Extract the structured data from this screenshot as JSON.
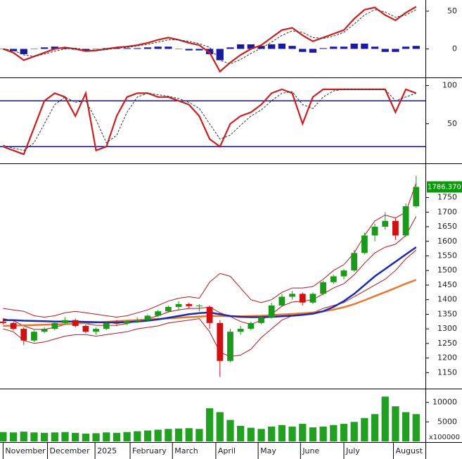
{
  "chart_data": {
    "type": "stock",
    "x": [
      0,
      1,
      2,
      3,
      4,
      5,
      6,
      7,
      8,
      9,
      10,
      11,
      12,
      13,
      14,
      15,
      16,
      17,
      18,
      19,
      20,
      21,
      22,
      23,
      24,
      25,
      26,
      27,
      28,
      29,
      30,
      31,
      32,
      33,
      34,
      35,
      36,
      37,
      38,
      39,
      40
    ],
    "xlim": [
      -0.3,
      40.9
    ],
    "xticks": [
      {
        "value": 0,
        "label": "November"
      },
      {
        "value": 4.3,
        "label": "December"
      },
      {
        "value": 8.9,
        "label": "2025"
      },
      {
        "value": 12.3,
        "label": "February"
      },
      {
        "value": 16.4,
        "label": "March"
      },
      {
        "value": 20.6,
        "label": "April"
      },
      {
        "value": 24.7,
        "label": "May"
      },
      {
        "value": 28.8,
        "label": "June"
      },
      {
        "value": 33.0,
        "label": "July"
      },
      {
        "value": 37.8,
        "label": "August"
      }
    ],
    "panels": [
      {
        "type": "line",
        "ylim": [
          -36,
          63
        ],
        "yticks": [
          0,
          50
        ],
        "histogram": {
          "color": "#1a1aa0",
          "values": [
            0,
            -3,
            -7,
            0,
            2,
            3,
            2,
            -1,
            -2,
            0,
            1,
            1,
            1,
            1,
            2,
            3,
            3,
            0,
            -2,
            -2,
            -7,
            -15,
            2,
            6,
            6,
            4,
            6,
            7,
            4,
            -4,
            -5,
            1,
            3,
            3,
            7,
            7,
            3,
            -4,
            -4,
            3,
            4
          ]
        },
        "series": [
          {
            "color": "#cc1f1f",
            "dash": false,
            "values": [
              0,
              -5,
              -15,
              -10,
              -5,
              0,
              2,
              0,
              -3,
              -2,
              0,
              2,
              3,
              5,
              8,
              12,
              15,
              12,
              8,
              5,
              -5,
              -30,
              -18,
              -8,
              0,
              5,
              15,
              25,
              28,
              18,
              10,
              15,
              20,
              25,
              40,
              52,
              55,
              45,
              38,
              48,
              56
            ]
          },
          {
            "color": "#333333",
            "dash": true,
            "values": [
              0,
              -2,
              -8,
              -10,
              -7,
              -3,
              0,
              1,
              -1,
              -2,
              -1,
              1,
              2,
              4,
              6,
              9,
              12,
              12,
              10,
              7,
              2,
              -15,
              -20,
              -14,
              -6,
              1,
              9,
              18,
              24,
              22,
              15,
              14,
              17,
              22,
              33,
              45,
              52,
              49,
              42,
              45,
              52
            ]
          }
        ]
      },
      {
        "type": "line",
        "ylim": [
          0,
          106
        ],
        "yticks": [
          50,
          100
        ],
        "levels": {
          "color": "#1010b0",
          "values": [
            80,
            20
          ]
        },
        "series": [
          {
            "color": "#cc1f1f",
            "dash": false,
            "values": [
              20,
              15,
              10,
              45,
              80,
              90,
              85,
              60,
              90,
              15,
              20,
              60,
              85,
              90,
              90,
              85,
              85,
              80,
              75,
              60,
              30,
              20,
              50,
              60,
              65,
              75,
              90,
              95,
              90,
              50,
              85,
              95,
              95,
              95,
              95,
              95,
              95,
              95,
              65,
              95,
              90
            ]
          },
          {
            "color": "#333333",
            "dash": true,
            "values": [
              22,
              18,
              15,
              25,
              50,
              75,
              85,
              78,
              80,
              55,
              25,
              35,
              65,
              85,
              90,
              88,
              86,
              83,
              78,
              70,
              50,
              30,
              35,
              48,
              60,
              68,
              80,
              90,
              92,
              75,
              70,
              85,
              93,
              95,
              95,
              95,
              95,
              95,
              80,
              85,
              90
            ]
          }
        ]
      },
      {
        "type": "candlestick",
        "ylim": [
          1100,
          1860
        ],
        "yticks": [
          1150,
          1200,
          1250,
          1300,
          1350,
          1400,
          1450,
          1500,
          1550,
          1600,
          1650,
          1700,
          1750
        ],
        "up_color": "#1a9a1a",
        "down_color": "#d01010",
        "last_price": {
          "value": 1786.37,
          "label": "1786.370",
          "color": "#0a9a0a"
        },
        "ohlc": [
          [
            1325,
            1335,
            1315,
            1320
          ],
          [
            1320,
            1325,
            1295,
            1300
          ],
          [
            1300,
            1305,
            1245,
            1260
          ],
          [
            1260,
            1295,
            1255,
            1290
          ],
          [
            1290,
            1305,
            1285,
            1300
          ],
          [
            1300,
            1325,
            1295,
            1320
          ],
          [
            1320,
            1340,
            1315,
            1330
          ],
          [
            1330,
            1335,
            1305,
            1310
          ],
          [
            1310,
            1315,
            1285,
            1290
          ],
          [
            1290,
            1305,
            1280,
            1300
          ],
          [
            1300,
            1325,
            1295,
            1320
          ],
          [
            1320,
            1330,
            1310,
            1318
          ],
          [
            1318,
            1330,
            1312,
            1325
          ],
          [
            1325,
            1340,
            1320,
            1330
          ],
          [
            1330,
            1350,
            1325,
            1345
          ],
          [
            1345,
            1365,
            1340,
            1360
          ],
          [
            1360,
            1380,
            1355,
            1375
          ],
          [
            1375,
            1395,
            1365,
            1385
          ],
          [
            1385,
            1390,
            1370,
            1378
          ],
          [
            1378,
            1385,
            1360,
            1380
          ],
          [
            1375,
            1380,
            1300,
            1320
          ],
          [
            1320,
            1330,
            1135,
            1190
          ],
          [
            1190,
            1300,
            1185,
            1290
          ],
          [
            1290,
            1310,
            1280,
            1300
          ],
          [
            1300,
            1325,
            1295,
            1320
          ],
          [
            1320,
            1345,
            1315,
            1340
          ],
          [
            1340,
            1390,
            1335,
            1380
          ],
          [
            1380,
            1420,
            1375,
            1410
          ],
          [
            1410,
            1430,
            1400,
            1420
          ],
          [
            1420,
            1425,
            1380,
            1390
          ],
          [
            1390,
            1425,
            1385,
            1420
          ],
          [
            1420,
            1465,
            1415,
            1460
          ],
          [
            1460,
            1485,
            1455,
            1480
          ],
          [
            1480,
            1505,
            1470,
            1500
          ],
          [
            1500,
            1570,
            1495,
            1560
          ],
          [
            1560,
            1630,
            1555,
            1620
          ],
          [
            1620,
            1660,
            1600,
            1650
          ],
          [
            1650,
            1700,
            1640,
            1670
          ],
          [
            1670,
            1680,
            1605,
            1620
          ],
          [
            1620,
            1730,
            1615,
            1720
          ],
          [
            1720,
            1825,
            1715,
            1786.37
          ]
        ],
        "series": [
          {
            "color": "#b01818",
            "width": 1,
            "values": [
              1370,
              1365,
              1360,
              1345,
              1340,
              1345,
              1355,
              1360,
              1355,
              1350,
              1345,
              1340,
              1345,
              1355,
              1365,
              1380,
              1395,
              1405,
              1410,
              1405,
              1460,
              1490,
              1480,
              1440,
              1400,
              1390,
              1400,
              1425,
              1440,
              1440,
              1445,
              1470,
              1500,
              1520,
              1560,
              1620,
              1670,
              1690,
              1680,
              1700,
              1800
            ]
          },
          {
            "color": "#b01818",
            "width": 1,
            "values": [
              1335,
              1328,
              1310,
              1298,
              1298,
              1305,
              1315,
              1320,
              1318,
              1312,
              1312,
              1312,
              1318,
              1328,
              1335,
              1345,
              1358,
              1365,
              1370,
              1370,
              1375,
              1355,
              1342,
              1325,
              1315,
              1330,
              1350,
              1378,
              1392,
              1395,
              1400,
              1420,
              1440,
              1455,
              1485,
              1525,
              1560,
              1580,
              1590,
              1620,
              1685
            ]
          },
          {
            "color": "#b01818",
            "width": 1,
            "values": [
              1300,
              1290,
              1260,
              1250,
              1255,
              1265,
              1275,
              1280,
              1280,
              1275,
              1280,
              1285,
              1290,
              1300,
              1305,
              1310,
              1320,
              1325,
              1330,
              1335,
              1290,
              1220,
              1205,
              1210,
              1230,
              1270,
              1300,
              1330,
              1345,
              1350,
              1355,
              1370,
              1380,
              1390,
              1410,
              1430,
              1450,
              1470,
              1500,
              1540,
              1570
            ]
          },
          {
            "color": "#e8772e",
            "width": 2.5,
            "values": [
              1310,
              1311,
              1312,
              1313,
              1314,
              1315,
              1316,
              1318,
              1320,
              1322,
              1324,
              1326,
              1328,
              1330,
              1332,
              1334,
              1336,
              1338,
              1340,
              1342,
              1344,
              1344,
              1343,
              1343,
              1344,
              1345,
              1347,
              1349,
              1351,
              1353,
              1356,
              1360,
              1366,
              1374,
              1385,
              1398,
              1412,
              1426,
              1440,
              1455,
              1468
            ]
          },
          {
            "color": "#1a2ab0",
            "width": 2.5,
            "values": [
              1330,
              1330,
              1328,
              1327,
              1326,
              1325,
              1325,
              1325,
              1324,
              1323,
              1322,
              1322,
              1323,
              1325,
              1328,
              1332,
              1338,
              1344,
              1350,
              1354,
              1356,
              1350,
              1344,
              1341,
              1340,
              1340,
              1341,
              1343,
              1345,
              1348,
              1352,
              1360,
              1375,
              1395,
              1420,
              1450,
              1480,
              1505,
              1530,
              1555,
              1580
            ]
          }
        ]
      },
      {
        "type": "bar",
        "ylim": [
          0,
          13000
        ],
        "yticks": [
          5000,
          10000
        ],
        "unit": "x100000",
        "color": "#22a022",
        "values": [
          2400,
          2300,
          2500,
          2300,
          2200,
          2300,
          2400,
          2200,
          2000,
          2100,
          2300,
          2200,
          2400,
          2600,
          2800,
          3000,
          3200,
          3300,
          3400,
          3200,
          8500,
          7500,
          5500,
          4000,
          3500,
          3200,
          3800,
          4200,
          3800,
          4500,
          3600,
          3800,
          4200,
          4500,
          5000,
          6000,
          7000,
          11500,
          9000,
          7500,
          7000
        ]
      }
    ]
  }
}
